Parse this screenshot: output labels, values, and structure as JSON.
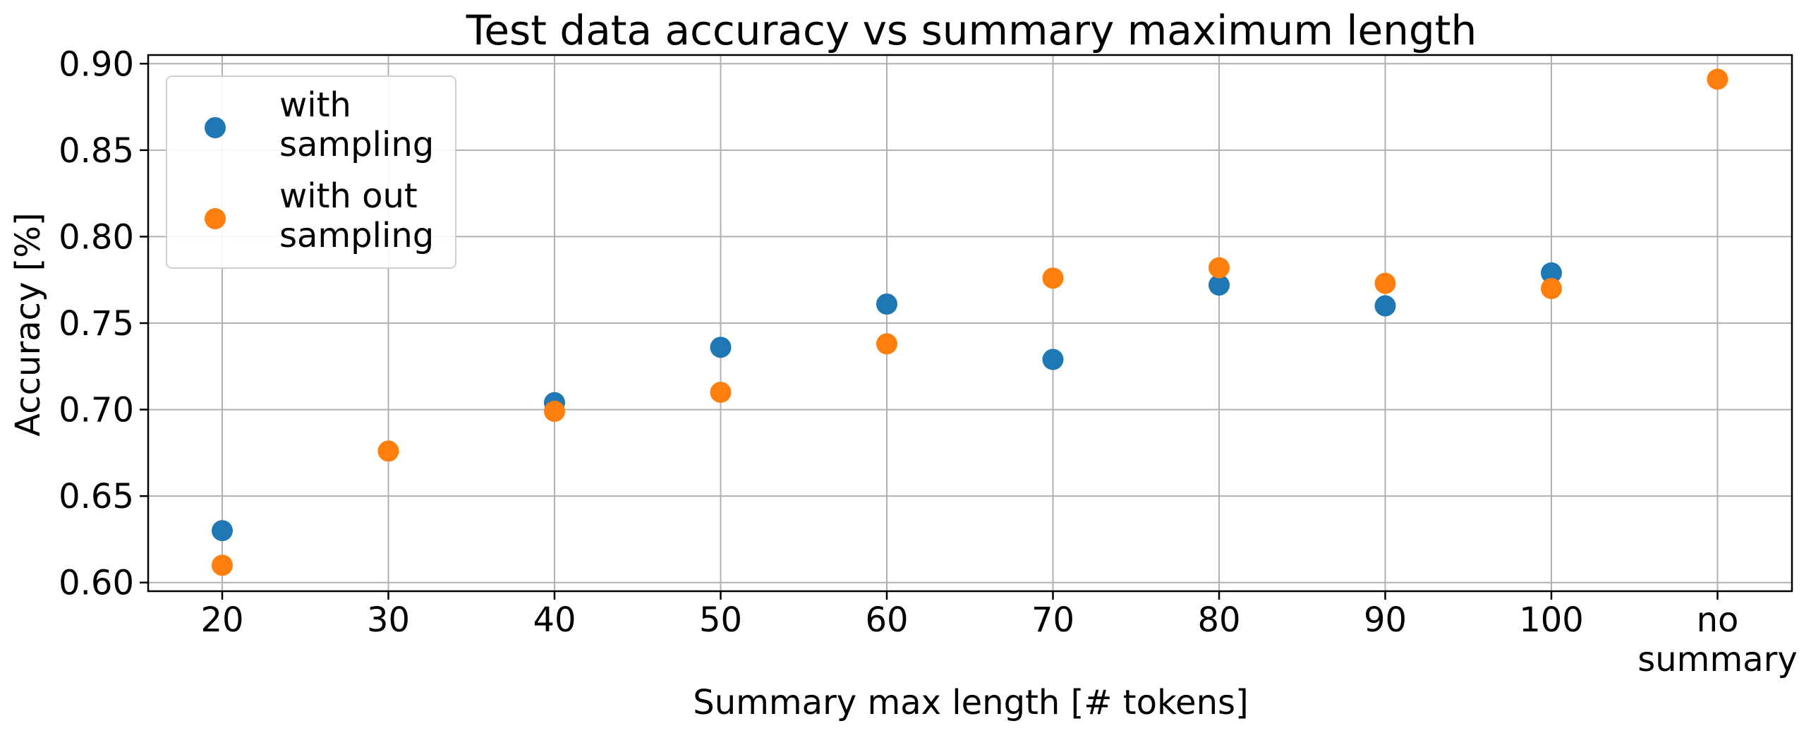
{
  "chart_data": {
    "type": "scatter",
    "title": "Test data accuracy vs summary maximum length",
    "xlabel": "Summary max length [# tokens]",
    "ylabel": "Accuracy [%]",
    "categories": [
      "20",
      "30",
      "40",
      "50",
      "60",
      "70",
      "80",
      "90",
      "100",
      "no\nsummary"
    ],
    "yticks": [
      "0.60",
      "0.65",
      "0.70",
      "0.75",
      "0.80",
      "0.85",
      "0.90"
    ],
    "ylim": [
      0.595,
      0.905
    ],
    "grid": true,
    "legend_position": "top-left",
    "series": [
      {
        "name": "with\nsampling",
        "color": "#1f77b4",
        "values": [
          0.63,
          null,
          0.704,
          0.736,
          0.761,
          0.729,
          0.772,
          0.76,
          0.779,
          null
        ]
      },
      {
        "name": "with out\nsampling",
        "color": "#ff7f0e",
        "values": [
          0.61,
          0.676,
          0.699,
          0.71,
          0.738,
          0.776,
          0.782,
          0.773,
          0.77,
          0.891
        ]
      }
    ]
  }
}
